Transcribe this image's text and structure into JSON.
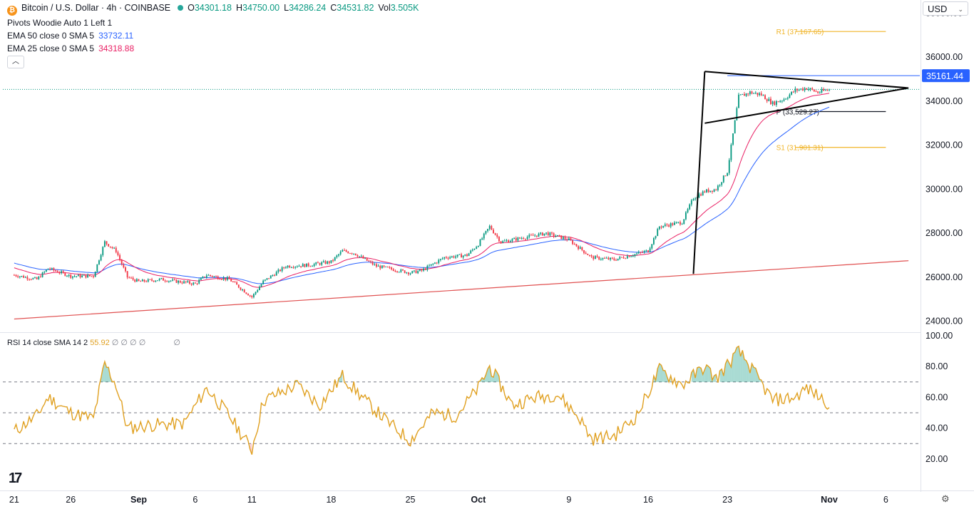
{
  "header": {
    "symbol_title": "Bitcoin / U.S. Dollar · 4h · COINBASE",
    "ohlc": {
      "o_label": "O",
      "o": "34301.18",
      "h_label": "H",
      "h": "34750.00",
      "l_label": "L",
      "l": "34286.24",
      "c_label": "C",
      "c": "34531.82",
      "vol_label": "Vol",
      "vol": "3.505K"
    },
    "pivots_label": "Pivots Woodie Auto 1 Left 1",
    "ema50_label": "EMA 50 close 0 SMA 5",
    "ema50_value": "33732.11",
    "ema25_label": "EMA 25 close 0 SMA 5",
    "ema25_value": "34318.88",
    "collapse_icon": "chevron-up-icon"
  },
  "currency": {
    "selected": "USD"
  },
  "rsi": {
    "label": "RSI 14 close SMA 14 2",
    "value": "55.92",
    "na_marks": "∅ ∅ ∅ ∅",
    "na_mark2": "∅"
  },
  "colors": {
    "up": "#089981",
    "down": "#f23645",
    "ema25": "#e91e63",
    "ema50": "#2962ff",
    "rsi": "#e0a020",
    "trendline": "#e05050",
    "pivot": "#f0b429",
    "last_price": "#2962ff"
  },
  "chart_data": [
    {
      "type": "candlestick",
      "title": "Bitcoin / U.S. Dollar",
      "interval": "4h",
      "y_axis": {
        "ticks": [
          "38000.00",
          "36000.00",
          "34000.00",
          "32000.00",
          "30000.00",
          "28000.00",
          "26000.00",
          "24000.00"
        ],
        "range": [
          23500,
          38600
        ]
      },
      "x_axis": {
        "ticks": [
          "21",
          "26",
          "Sep",
          "6",
          "11",
          "18",
          "25",
          "Oct",
          "9",
          "16",
          "23",
          "Nov",
          "6"
        ],
        "tick_dates": [
          "2023-08-21",
          "2023-08-26",
          "2023-09-01",
          "2023-09-06",
          "2023-09-11",
          "2023-09-18",
          "2023-09-25",
          "2023-10-01",
          "2023-10-09",
          "2023-10-16",
          "2023-10-23",
          "2023-11-01",
          "2023-11-06"
        ]
      },
      "last_price_label": "35161.44",
      "last_price": 35161.44,
      "price_anchors": [
        [
          "2023-08-21",
          26100
        ],
        [
          "2023-08-23",
          25900
        ],
        [
          "2023-08-24",
          26400
        ],
        [
          "2023-08-26",
          26050
        ],
        [
          "2023-08-28",
          26050
        ],
        [
          "2023-08-29",
          27600
        ],
        [
          "2023-08-30",
          27200
        ],
        [
          "2023-08-31",
          26000
        ],
        [
          "2023-09-01",
          25800
        ],
        [
          "2023-09-03",
          25900
        ],
        [
          "2023-09-06",
          25700
        ],
        [
          "2023-09-07",
          26100
        ],
        [
          "2023-09-09",
          25900
        ],
        [
          "2023-09-11",
          25100
        ],
        [
          "2023-09-12",
          25800
        ],
        [
          "2023-09-14",
          26500
        ],
        [
          "2023-09-16",
          26550
        ],
        [
          "2023-09-18",
          26700
        ],
        [
          "2023-09-19",
          27200
        ],
        [
          "2023-09-20",
          27100
        ],
        [
          "2023-09-22",
          26500
        ],
        [
          "2023-09-25",
          26200
        ],
        [
          "2023-09-26",
          26300
        ],
        [
          "2023-09-28",
          26900
        ],
        [
          "2023-09-30",
          27000
        ],
        [
          "2023-10-01",
          27500
        ],
        [
          "2023-10-02",
          28300
        ],
        [
          "2023-10-03",
          27600
        ],
        [
          "2023-10-05",
          27800
        ],
        [
          "2023-10-07",
          28000
        ],
        [
          "2023-10-09",
          27700
        ],
        [
          "2023-10-11",
          26900
        ],
        [
          "2023-10-13",
          26800
        ],
        [
          "2023-10-16",
          27200
        ],
        [
          "2023-10-17",
          28300
        ],
        [
          "2023-10-19",
          28500
        ],
        [
          "2023-10-20",
          29600
        ],
        [
          "2023-10-21",
          29900
        ],
        [
          "2023-10-22",
          30000
        ],
        [
          "2023-10-23",
          30800
        ],
        [
          "2023-10-24",
          34200
        ],
        [
          "2023-10-25",
          34400
        ],
        [
          "2023-10-26",
          34300
        ],
        [
          "2023-10-27",
          33900
        ],
        [
          "2023-10-28",
          34100
        ],
        [
          "2023-10-29",
          34500
        ],
        [
          "2023-10-30",
          34600
        ],
        [
          "2023-10-31",
          34400
        ],
        [
          "2023-11-01",
          34531.82
        ]
      ],
      "pivots": [
        {
          "label": "R1 (37,167.65)",
          "value": 37167.65
        },
        {
          "label": "P (33,529.27)",
          "value": 33529.27
        },
        {
          "label": "S1 (31,901.31)",
          "value": 31901.31
        }
      ],
      "trendline": {
        "from": [
          "2023-08-21",
          24100
        ],
        "to": [
          "2023-11-08",
          26750
        ]
      },
      "pennant": {
        "pole": [
          [
            "2023-10-20",
            26150
          ],
          [
            "2023-10-21",
            35350
          ]
        ],
        "upper": [
          [
            "2023-10-21",
            35350
          ],
          [
            "2023-11-08",
            34600
          ]
        ],
        "lower": [
          [
            "2023-10-21",
            33000
          ],
          [
            "2023-11-08",
            34600
          ]
        ]
      }
    },
    {
      "type": "line",
      "title": "RSI 14 close SMA 14 2",
      "y_axis": {
        "ticks": [
          "100.00",
          "80.00",
          "60.00",
          "40.00",
          "20.00"
        ],
        "range": [
          0,
          100
        ]
      },
      "bands": [
        70,
        50,
        30
      ],
      "rsi_anchors": [
        [
          "2023-08-21",
          38
        ],
        [
          "2023-08-23",
          48
        ],
        [
          "2023-08-24",
          60
        ],
        [
          "2023-08-26",
          50
        ],
        [
          "2023-08-28",
          46
        ],
        [
          "2023-08-29",
          82
        ],
        [
          "2023-08-30",
          68
        ],
        [
          "2023-08-31",
          40
        ],
        [
          "2023-09-02",
          42
        ],
        [
          "2023-09-05",
          43
        ],
        [
          "2023-09-07",
          66
        ],
        [
          "2023-09-09",
          48
        ],
        [
          "2023-09-11",
          26
        ],
        [
          "2023-09-12",
          58
        ],
        [
          "2023-09-15",
          68
        ],
        [
          "2023-09-17",
          55
        ],
        [
          "2023-09-19",
          74
        ],
        [
          "2023-09-21",
          58
        ],
        [
          "2023-09-23",
          44
        ],
        [
          "2023-09-25",
          32
        ],
        [
          "2023-09-27",
          50
        ],
        [
          "2023-09-29",
          48
        ],
        [
          "2023-10-01",
          66
        ],
        [
          "2023-10-02",
          80
        ],
        [
          "2023-10-04",
          55
        ],
        [
          "2023-10-06",
          60
        ],
        [
          "2023-10-08",
          62
        ],
        [
          "2023-10-10",
          46
        ],
        [
          "2023-10-11",
          33
        ],
        [
          "2023-10-13",
          35
        ],
        [
          "2023-10-15",
          48
        ],
        [
          "2023-10-17",
          78
        ],
        [
          "2023-10-19",
          68
        ],
        [
          "2023-10-21",
          80
        ],
        [
          "2023-10-22",
          72
        ],
        [
          "2023-10-24",
          90
        ],
        [
          "2023-10-25",
          80
        ],
        [
          "2023-10-27",
          58
        ],
        [
          "2023-10-29",
          60
        ],
        [
          "2023-10-30",
          66
        ],
        [
          "2023-11-01",
          55.92
        ]
      ]
    }
  ]
}
